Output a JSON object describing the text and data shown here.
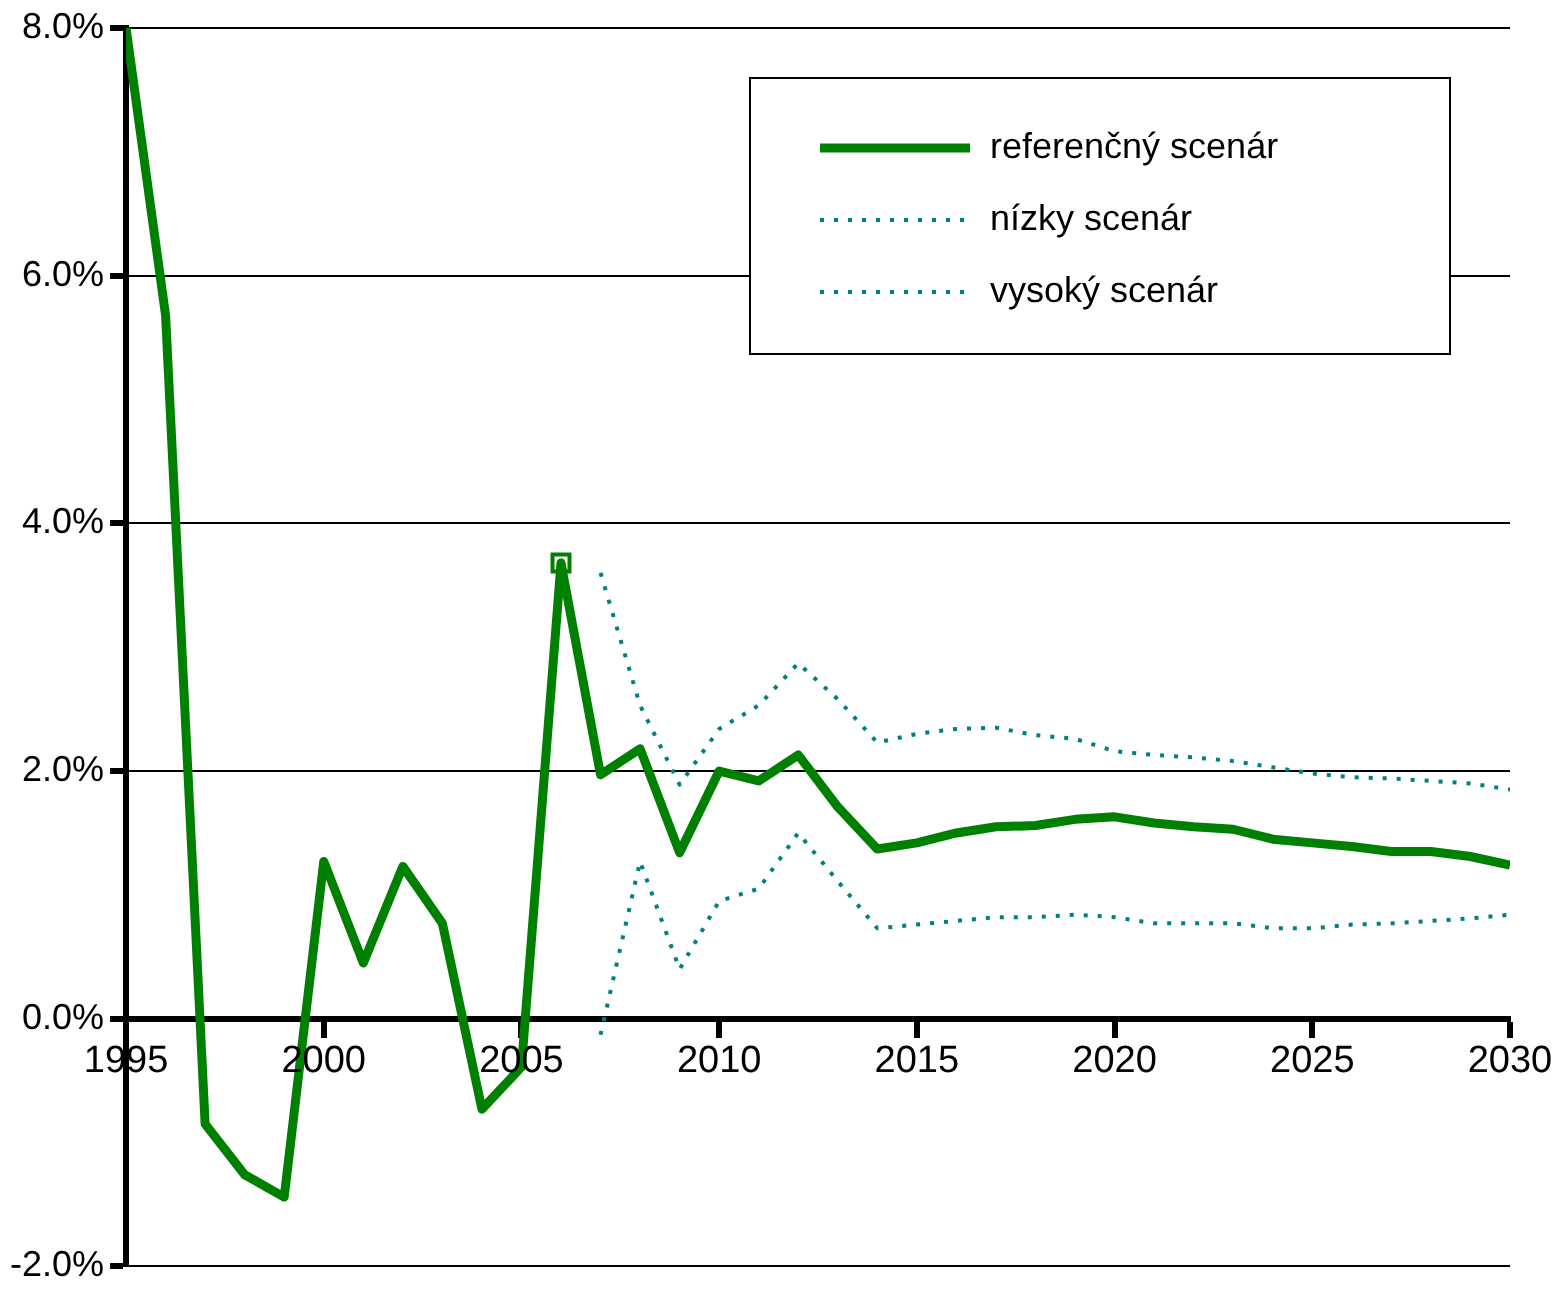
{
  "chart_data": {
    "type": "line",
    "x": [
      1995,
      1996,
      1997,
      1998,
      1999,
      2000,
      2001,
      2002,
      2003,
      2004,
      2005,
      2006,
      2007,
      2008,
      2009,
      2010,
      2011,
      2012,
      2013,
      2014,
      2015,
      2016,
      2017,
      2018,
      2019,
      2020,
      2021,
      2022,
      2023,
      2024,
      2025,
      2026,
      2027,
      2028,
      2029,
      2030
    ],
    "series": [
      {
        "name": "referenčný scenár",
        "color": "#008000",
        "line_style": "solid",
        "values": [
          8.0,
          5.68,
          -0.85,
          -1.26,
          -1.44,
          1.27,
          0.45,
          1.23,
          0.77,
          -0.73,
          -0.39,
          3.68,
          1.97,
          2.18,
          1.34,
          2.0,
          1.92,
          2.13,
          1.71,
          1.37,
          1.42,
          1.5,
          1.55,
          1.56,
          1.61,
          1.63,
          1.58,
          1.55,
          1.53,
          1.45,
          1.42,
          1.39,
          1.35,
          1.35,
          1.31,
          1.24
        ]
      },
      {
        "name": "nízky scenár",
        "color": "#008080",
        "line_style": "dotted",
        "x": [
          2007,
          2008,
          2009,
          2010,
          2011,
          2012,
          2013,
          2014,
          2015,
          2016,
          2017,
          2018,
          2019,
          2020,
          2021,
          2022,
          2023,
          2024,
          2025,
          2026,
          2027,
          2028,
          2029,
          2030
        ],
        "values": [
          -0.13,
          1.27,
          0.4,
          0.95,
          1.05,
          1.5,
          1.11,
          0.73,
          0.76,
          0.79,
          0.82,
          0.82,
          0.84,
          0.82,
          0.77,
          0.77,
          0.77,
          0.73,
          0.73,
          0.76,
          0.77,
          0.79,
          0.81,
          0.84
        ]
      },
      {
        "name": "vysoký scenár",
        "color": "#008080",
        "line_style": "dotted",
        "x": [
          2007,
          2008,
          2009,
          2010,
          2011,
          2012,
          2013,
          2014,
          2015,
          2016,
          2017,
          2018,
          2019,
          2020,
          2021,
          2022,
          2023,
          2024,
          2025,
          2026,
          2027,
          2028,
          2029,
          2030
        ],
        "values": [
          3.6,
          2.53,
          1.89,
          2.34,
          2.53,
          2.87,
          2.58,
          2.23,
          2.3,
          2.34,
          2.35,
          2.29,
          2.26,
          2.16,
          2.13,
          2.11,
          2.08,
          2.03,
          1.98,
          1.95,
          1.94,
          1.92,
          1.9,
          1.85
        ]
      },
      {
        "type": "scatter",
        "color": "#008000",
        "marker": "square",
        "x": [
          2006
        ],
        "values": [
          3.68
        ]
      }
    ],
    "xlim": [
      1995,
      2030
    ],
    "xticks": [
      1995,
      2000,
      2005,
      2010,
      2015,
      2020,
      2025,
      2030
    ],
    "ylim": [
      -2,
      8
    ],
    "yticks": [
      {
        "value": -2,
        "label": "-2.0%"
      },
      {
        "value": 0,
        "label": "0.0%"
      },
      {
        "value": 2,
        "label": "2.0%"
      },
      {
        "value": 4,
        "label": "4.0%"
      },
      {
        "value": 6,
        "label": "6.0%"
      },
      {
        "value": 8,
        "label": "8.0%"
      }
    ],
    "grid": "y",
    "legend": "top right",
    "marker": "none"
  }
}
